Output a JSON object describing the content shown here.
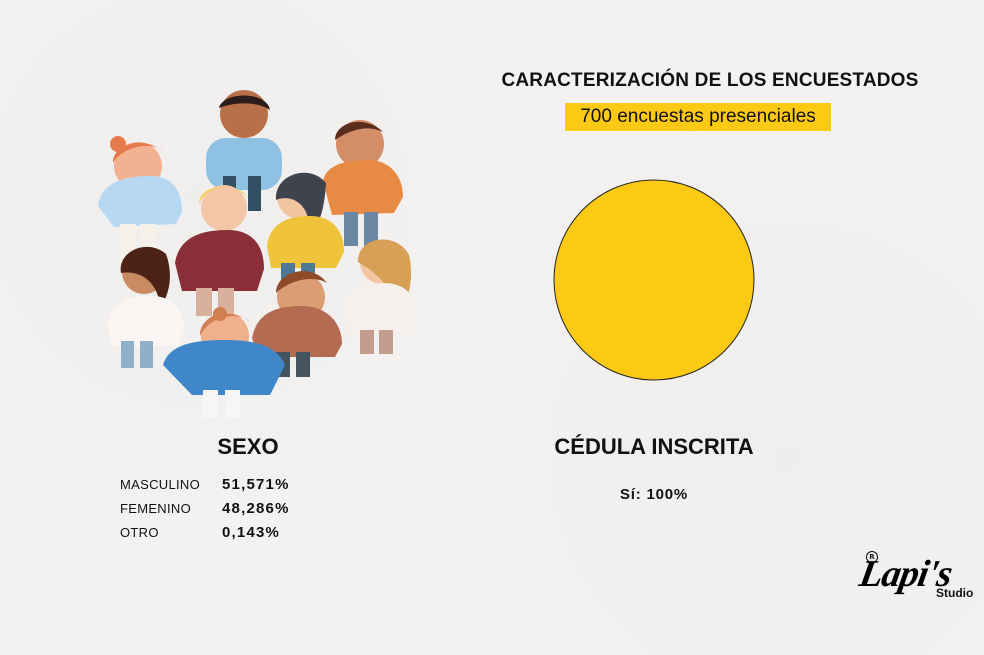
{
  "header": {
    "title": "CARACTERIZACIÓN DE LOS ENCUESTADOS",
    "subtitle": "700 encuestas presenciales"
  },
  "sexo": {
    "title": "SEXO",
    "rows": [
      {
        "label": "MASCULINO",
        "value": "51,571%"
      },
      {
        "label": "FEMENINO",
        "value": "48,286%"
      },
      {
        "label": "OTRO",
        "value": "0,143%"
      }
    ]
  },
  "cedula": {
    "title": "CÉDULA INSCRITA",
    "label": "Sí: 100%"
  },
  "logo": {
    "main": "Lapi's",
    "sub": "Studio",
    "mark": "R"
  },
  "chart_data": {
    "type": "pie",
    "categories": [
      "Sí"
    ],
    "values": [
      100
    ],
    "title": "CÉDULA INSCRITA",
    "colors": [
      "#fcc915"
    ],
    "grid": false,
    "legend": "none"
  },
  "colors": {
    "accent": "#fcc915",
    "background": "#f3f2f1",
    "text": "#111111"
  }
}
